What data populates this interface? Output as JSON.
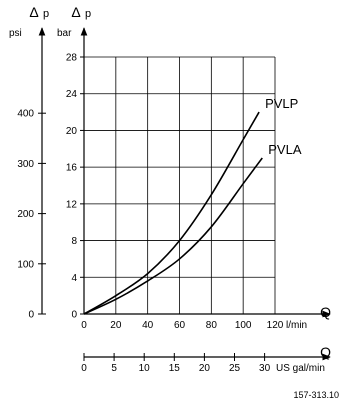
{
  "chart_data": {
    "type": "line",
    "left_axis": {
      "symbol": "Δ",
      "letter": "p",
      "unit": "psi",
      "ticks": [
        0,
        100,
        200,
        300,
        400
      ]
    },
    "right_axis": {
      "symbol": "Δ",
      "letter": "p",
      "unit": "bar",
      "ylim": [
        0,
        28
      ],
      "ticks": [
        0,
        4,
        8,
        12,
        16,
        20,
        24,
        28
      ]
    },
    "x_axis": {
      "label": "Q",
      "unit": "l/min",
      "xlim": [
        0,
        130
      ],
      "ticks": [
        0,
        20,
        40,
        60,
        80,
        100,
        120
      ]
    },
    "x2_axis": {
      "label": "Q",
      "unit": "US gal/min",
      "ticks": [
        0,
        5,
        10,
        15,
        20,
        25,
        30
      ]
    },
    "grid": true,
    "series": [
      {
        "name": "PVLP",
        "x": [
          0,
          20,
          40,
          60,
          80,
          100,
          110
        ],
        "y": [
          0,
          2,
          4.4,
          8,
          13,
          19,
          22
        ]
      },
      {
        "name": "PVLA",
        "x": [
          0,
          20,
          40,
          60,
          80,
          100,
          112
        ],
        "y": [
          0,
          1.6,
          3.6,
          6,
          9.5,
          14.2,
          17
        ]
      }
    ],
    "reference_code": "157-313.10"
  }
}
